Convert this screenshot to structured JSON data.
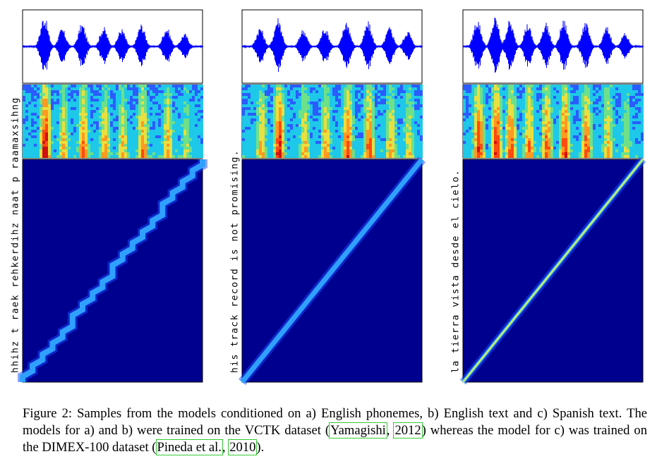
{
  "figure": {
    "panels": [
      {
        "id": "a",
        "text_label": "hhihz t raek rehkerdihz naat p raamaxsihng",
        "colors": {
          "waveform": "#0000ff",
          "alignment_bg": "#00008f"
        },
        "alignment_shape": "stepped-diagonal"
      },
      {
        "id": "b",
        "text_label": "his track record is not promising.",
        "colors": {
          "waveform": "#0000ff",
          "alignment_bg": "#00008f"
        },
        "alignment_shape": "smooth-diagonal"
      },
      {
        "id": "c",
        "text_label": "la tierra vista desde el cielo.",
        "colors": {
          "waveform": "#0000ff",
          "alignment_bg": "#00008f"
        },
        "alignment_shape": "sharp-diagonal"
      }
    ]
  },
  "caption": {
    "prefix": "Figure 2:  Samples from the models conditioned on a) English phonemes, b) English text and c) Spanish text. The models for a) and b) were trained on the VCTK dataset (",
    "cite1_author": "Yamagishi",
    "cite1_sep": ", ",
    "cite1_year": "2012",
    "middle": ") whereas the model for c) was trained on the DIMEX-100 dataset (",
    "cite2_author": "Pineda et al.",
    "cite2_sep": ", ",
    "cite2_year": "2010",
    "suffix": ")."
  }
}
